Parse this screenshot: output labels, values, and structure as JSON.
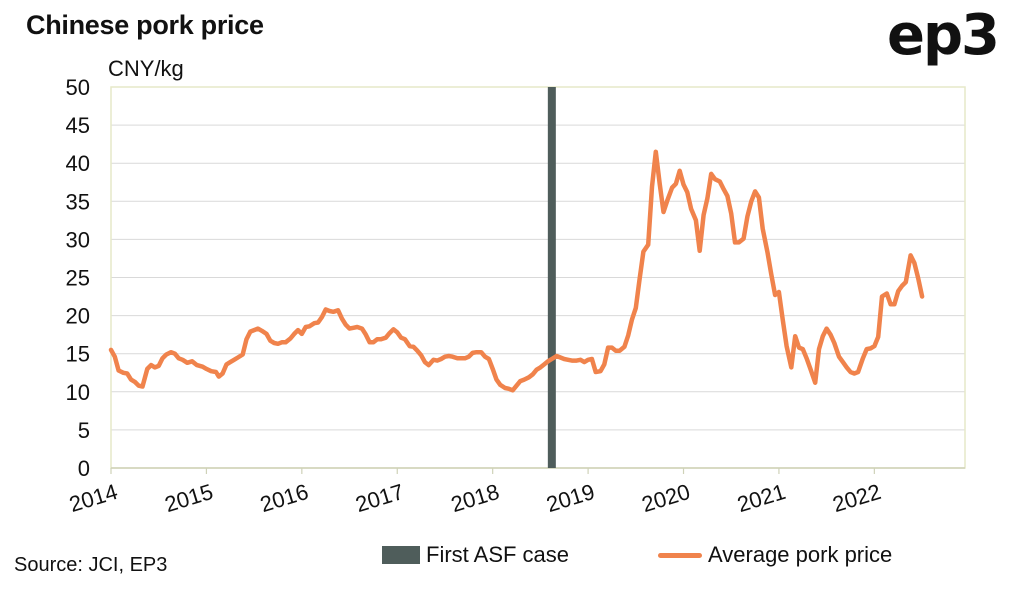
{
  "header": {
    "title": "Chinese pork price",
    "logo_text": "ep3"
  },
  "footer": {
    "source": "Source: JCI, EP3"
  },
  "colors": {
    "line": "#f0834c",
    "marker": "#4f5d5b",
    "grid": "#d9d9d9",
    "frame": "#e6e9c9",
    "axis": "#cfd2b8"
  },
  "chart_data": {
    "type": "line",
    "title": "Chinese pork price",
    "ylabel": "CNY/kg",
    "xlabel": "",
    "ylim": [
      0,
      50
    ],
    "yticks": [
      0,
      5,
      10,
      15,
      20,
      25,
      30,
      35,
      40,
      45,
      50
    ],
    "xlim": [
      2014.0,
      2022.95
    ],
    "xticks": [
      2014,
      2015,
      2016,
      2017,
      2018,
      2019,
      2020,
      2021,
      2022
    ],
    "grid": true,
    "legend_position": "bottom",
    "annotations": [
      {
        "type": "vertical-bar",
        "x": 2018.62,
        "label": "First ASF case"
      }
    ],
    "series": [
      {
        "name": "Average pork price",
        "points": [
          [
            2014.0,
            15.5
          ],
          [
            2014.04,
            14.6
          ],
          [
            2014.08,
            12.8
          ],
          [
            2014.13,
            12.5
          ],
          [
            2014.17,
            12.4
          ],
          [
            2014.21,
            11.6
          ],
          [
            2014.25,
            11.3
          ],
          [
            2014.29,
            10.8
          ],
          [
            2014.33,
            10.7
          ],
          [
            2014.38,
            13.0
          ],
          [
            2014.42,
            13.5
          ],
          [
            2014.46,
            13.2
          ],
          [
            2014.5,
            13.4
          ],
          [
            2014.54,
            14.4
          ],
          [
            2014.58,
            14.9
          ],
          [
            2014.63,
            15.2
          ],
          [
            2014.67,
            15.0
          ],
          [
            2014.71,
            14.4
          ],
          [
            2014.75,
            14.2
          ],
          [
            2014.8,
            13.8
          ],
          [
            2014.85,
            14.0
          ],
          [
            2014.9,
            13.5
          ],
          [
            2014.96,
            13.3
          ],
          [
            2015.0,
            13.0
          ],
          [
            2015.05,
            12.7
          ],
          [
            2015.1,
            12.6
          ],
          [
            2015.13,
            12.0
          ],
          [
            2015.17,
            12.4
          ],
          [
            2015.21,
            13.6
          ],
          [
            2015.25,
            13.9
          ],
          [
            2015.29,
            14.2
          ],
          [
            2015.33,
            14.5
          ],
          [
            2015.38,
            14.9
          ],
          [
            2015.42,
            16.9
          ],
          [
            2015.46,
            17.9
          ],
          [
            2015.5,
            18.1
          ],
          [
            2015.54,
            18.3
          ],
          [
            2015.58,
            18.0
          ],
          [
            2015.63,
            17.6
          ],
          [
            2015.67,
            16.7
          ],
          [
            2015.71,
            16.4
          ],
          [
            2015.75,
            16.3
          ],
          [
            2015.79,
            16.5
          ],
          [
            2015.83,
            16.5
          ],
          [
            2015.88,
            17.0
          ],
          [
            2015.92,
            17.6
          ],
          [
            2015.96,
            18.1
          ],
          [
            2016.0,
            17.6
          ],
          [
            2016.04,
            18.5
          ],
          [
            2016.08,
            18.6
          ],
          [
            2016.13,
            19.0
          ],
          [
            2016.17,
            19.1
          ],
          [
            2016.21,
            19.8
          ],
          [
            2016.25,
            20.8
          ],
          [
            2016.29,
            20.6
          ],
          [
            2016.33,
            20.5
          ],
          [
            2016.38,
            20.7
          ],
          [
            2016.42,
            19.6
          ],
          [
            2016.46,
            18.8
          ],
          [
            2016.5,
            18.3
          ],
          [
            2016.54,
            18.4
          ],
          [
            2016.58,
            18.5
          ],
          [
            2016.63,
            18.3
          ],
          [
            2016.67,
            17.5
          ],
          [
            2016.71,
            16.5
          ],
          [
            2016.75,
            16.5
          ],
          [
            2016.79,
            16.9
          ],
          [
            2016.83,
            16.9
          ],
          [
            2016.88,
            17.1
          ],
          [
            2016.92,
            17.7
          ],
          [
            2016.96,
            18.2
          ],
          [
            2017.0,
            17.8
          ],
          [
            2017.04,
            17.1
          ],
          [
            2017.08,
            16.9
          ],
          [
            2017.13,
            16.0
          ],
          [
            2017.17,
            15.9
          ],
          [
            2017.21,
            15.4
          ],
          [
            2017.25,
            14.8
          ],
          [
            2017.29,
            13.9
          ],
          [
            2017.33,
            13.5
          ],
          [
            2017.38,
            14.2
          ],
          [
            2017.42,
            14.1
          ],
          [
            2017.46,
            14.3
          ],
          [
            2017.5,
            14.6
          ],
          [
            2017.54,
            14.7
          ],
          [
            2017.58,
            14.6
          ],
          [
            2017.63,
            14.4
          ],
          [
            2017.67,
            14.4
          ],
          [
            2017.71,
            14.4
          ],
          [
            2017.75,
            14.6
          ],
          [
            2017.79,
            15.1
          ],
          [
            2017.83,
            15.2
          ],
          [
            2017.88,
            15.2
          ],
          [
            2017.92,
            14.6
          ],
          [
            2017.96,
            14.3
          ],
          [
            2018.0,
            13.0
          ],
          [
            2018.04,
            11.6
          ],
          [
            2018.08,
            10.9
          ],
          [
            2018.13,
            10.5
          ],
          [
            2018.17,
            10.4
          ],
          [
            2018.21,
            10.2
          ],
          [
            2018.25,
            10.8
          ],
          [
            2018.29,
            11.4
          ],
          [
            2018.33,
            11.6
          ],
          [
            2018.38,
            11.9
          ],
          [
            2018.42,
            12.3
          ],
          [
            2018.46,
            12.9
          ],
          [
            2018.5,
            13.2
          ],
          [
            2018.54,
            13.6
          ],
          [
            2018.58,
            14.0
          ],
          [
            2018.62,
            14.3
          ],
          [
            2018.67,
            14.7
          ],
          [
            2018.71,
            14.5
          ],
          [
            2018.75,
            14.3
          ],
          [
            2018.79,
            14.2
          ],
          [
            2018.83,
            14.1
          ],
          [
            2018.88,
            14.1
          ],
          [
            2018.92,
            14.2
          ],
          [
            2018.96,
            13.9
          ],
          [
            2019.0,
            14.2
          ],
          [
            2019.04,
            14.3
          ],
          [
            2019.08,
            12.6
          ],
          [
            2019.13,
            12.7
          ],
          [
            2019.17,
            13.6
          ],
          [
            2019.21,
            15.8
          ],
          [
            2019.25,
            15.8
          ],
          [
            2019.29,
            15.4
          ],
          [
            2019.33,
            15.4
          ],
          [
            2019.38,
            15.9
          ],
          [
            2019.42,
            17.4
          ],
          [
            2019.46,
            19.5
          ],
          [
            2019.5,
            21.0
          ],
          [
            2019.54,
            24.8
          ],
          [
            2019.58,
            28.4
          ],
          [
            2019.63,
            29.3
          ],
          [
            2019.67,
            36.9
          ],
          [
            2019.71,
            41.5
          ],
          [
            2019.75,
            37.3
          ],
          [
            2019.79,
            33.6
          ],
          [
            2019.83,
            35.1
          ],
          [
            2019.88,
            36.8
          ],
          [
            2019.92,
            37.3
          ],
          [
            2019.96,
            39.0
          ],
          [
            2020.0,
            37.2
          ],
          [
            2020.04,
            36.2
          ],
          [
            2020.08,
            34.0
          ],
          [
            2020.13,
            32.5
          ],
          [
            2020.17,
            28.5
          ],
          [
            2020.21,
            33.2
          ],
          [
            2020.25,
            35.4
          ],
          [
            2020.29,
            38.6
          ],
          [
            2020.33,
            37.9
          ],
          [
            2020.38,
            37.6
          ],
          [
            2020.42,
            36.6
          ],
          [
            2020.46,
            35.7
          ],
          [
            2020.5,
            33.4
          ],
          [
            2020.54,
            29.6
          ],
          [
            2020.58,
            29.6
          ],
          [
            2020.63,
            30.1
          ],
          [
            2020.67,
            33.0
          ],
          [
            2020.71,
            35.0
          ],
          [
            2020.75,
            36.3
          ],
          [
            2020.79,
            35.5
          ],
          [
            2020.83,
            31.4
          ],
          [
            2020.88,
            28.3
          ],
          [
            2020.92,
            25.4
          ],
          [
            2020.96,
            22.7
          ],
          [
            2021.0,
            23.1
          ],
          [
            2021.04,
            19.5
          ],
          [
            2021.08,
            16.0
          ],
          [
            2021.13,
            13.2
          ],
          [
            2021.17,
            17.3
          ],
          [
            2021.21,
            15.8
          ],
          [
            2021.25,
            15.6
          ],
          [
            2021.29,
            14.4
          ],
          [
            2021.33,
            13.0
          ],
          [
            2021.38,
            11.2
          ],
          [
            2021.42,
            15.6
          ],
          [
            2021.46,
            17.3
          ],
          [
            2021.5,
            18.3
          ],
          [
            2021.54,
            17.5
          ],
          [
            2021.58,
            16.4
          ],
          [
            2021.63,
            14.6
          ],
          [
            2021.67,
            13.9
          ],
          [
            2021.71,
            13.2
          ],
          [
            2021.75,
            12.6
          ],
          [
            2021.79,
            12.4
          ],
          [
            2021.83,
            12.6
          ],
          [
            2021.88,
            14.4
          ],
          [
            2021.92,
            15.6
          ],
          [
            2021.96,
            15.7
          ],
          [
            2022.0,
            16.0
          ],
          [
            2022.04,
            17.2
          ],
          [
            2022.08,
            22.5
          ],
          [
            2022.13,
            22.9
          ],
          [
            2022.17,
            21.5
          ],
          [
            2022.21,
            21.5
          ],
          [
            2022.25,
            23.2
          ],
          [
            2022.29,
            23.9
          ],
          [
            2022.33,
            24.4
          ],
          [
            2022.38,
            27.9
          ],
          [
            2022.42,
            26.9
          ],
          [
            2022.46,
            24.9
          ],
          [
            2022.5,
            22.5
          ]
        ]
      }
    ]
  },
  "legend": {
    "marker_label": "First ASF case",
    "line_label": "Average pork price"
  }
}
